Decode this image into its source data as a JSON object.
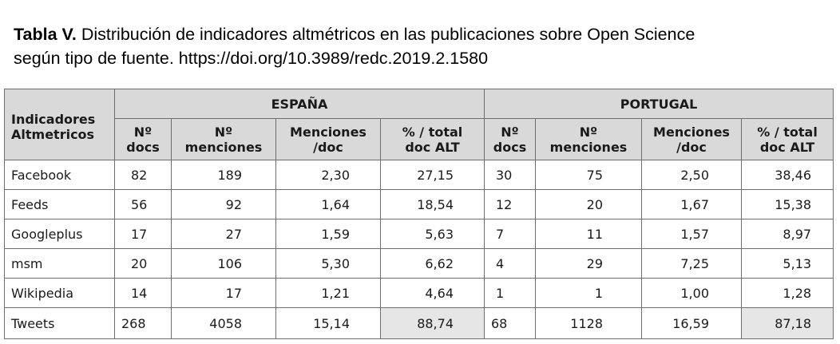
{
  "caption": {
    "label": "Tabla V.",
    "line1": "Distribución de indicadores altmétricos en las publicaciones sobre Open Science",
    "line2": "según tipo de fuente. https://doi.org/10.3989/redc.2019.2.1580"
  },
  "table": {
    "row_header": [
      "Indicadores",
      "Altmetricos"
    ],
    "groups": [
      "ESPAÑA",
      "PORTUGAL"
    ],
    "columns": {
      "docs": [
        "Nº",
        "docs"
      ],
      "menciones": [
        "Nº",
        "menciones"
      ],
      "per_doc": [
        "Menciones",
        "/doc"
      ],
      "pct": [
        "% / total",
        "doc ALT"
      ]
    },
    "rows": [
      {
        "label": "Facebook",
        "es": [
          "82",
          "189",
          "2,30",
          "27,15"
        ],
        "pt": [
          "30",
          "75",
          "2,50",
          "38,46"
        ]
      },
      {
        "label": "Feeds",
        "es": [
          "56",
          "92",
          "1,64",
          "18,54"
        ],
        "pt": [
          "12",
          "20",
          "1,67",
          "15,38"
        ]
      },
      {
        "label": "Googleplus",
        "es": [
          "17",
          "27",
          "1,59",
          "5,63"
        ],
        "pt": [
          "7",
          "11",
          "1,57",
          "8,97"
        ]
      },
      {
        "label": "msm",
        "es": [
          "20",
          "106",
          "5,30",
          "6,62"
        ],
        "pt": [
          "4",
          "29",
          "7,25",
          "5,13"
        ]
      },
      {
        "label": "Wikipedia",
        "es": [
          "14",
          "17",
          "1,21",
          "4,64"
        ],
        "pt": [
          "1",
          "1",
          "1,00",
          "1,28"
        ]
      },
      {
        "label": "Tweets",
        "es": [
          "268",
          "4058",
          "15,14",
          "88,74"
        ],
        "pt": [
          "68",
          "1128",
          "16,59",
          "87,18"
        ]
      }
    ]
  },
  "highlight_color": "#e6e6e6",
  "header_color": "#d9d9d9"
}
